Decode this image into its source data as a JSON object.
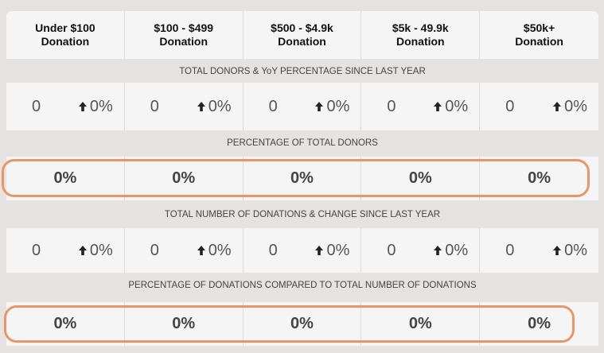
{
  "tiers": [
    {
      "range": "Under $100",
      "suffix": "Donation"
    },
    {
      "range": "$100 - $499",
      "suffix": "Donation"
    },
    {
      "range": "$500 - $4.9k",
      "suffix": "Donation"
    },
    {
      "range": "$5k - 49.9k",
      "suffix": "Donation"
    },
    {
      "range": "$50k+",
      "suffix": "Donation"
    }
  ],
  "sections": {
    "total_donors": {
      "title": "TOTAL DONORS & YoY PERCENTAGE SINCE LAST YEAR",
      "cells": [
        {
          "count": "0",
          "change": "0%"
        },
        {
          "count": "0",
          "change": "0%"
        },
        {
          "count": "0",
          "change": "0%"
        },
        {
          "count": "0",
          "change": "0%"
        },
        {
          "count": "0",
          "change": "0%"
        }
      ]
    },
    "pct_total_donors": {
      "title": "PERCENTAGE OF TOTAL DONORS",
      "values": [
        "0%",
        "0%",
        "0%",
        "0%",
        "0%"
      ]
    },
    "total_donations": {
      "title": "TOTAL NUMBER OF DONATIONS & CHANGE SINCE LAST YEAR",
      "cells": [
        {
          "count": "0",
          "change": "0%"
        },
        {
          "count": "0",
          "change": "0%"
        },
        {
          "count": "0",
          "change": "0%"
        },
        {
          "count": "0",
          "change": "0%"
        },
        {
          "count": "0",
          "change": "0%"
        }
      ]
    },
    "pct_donations": {
      "title": "PERCENTAGE OF DONATIONS COMPARED TO TOTAL NUMBER OF DONATIONS",
      "values": [
        "0%",
        "0%",
        "0%",
        "0%",
        "0%"
      ]
    }
  },
  "icons": {
    "change_indicator": "arrow-up-icon"
  },
  "colors": {
    "highlight": "#e9956a",
    "panel": "#f5f5f5",
    "background": "#e4e3e1"
  }
}
